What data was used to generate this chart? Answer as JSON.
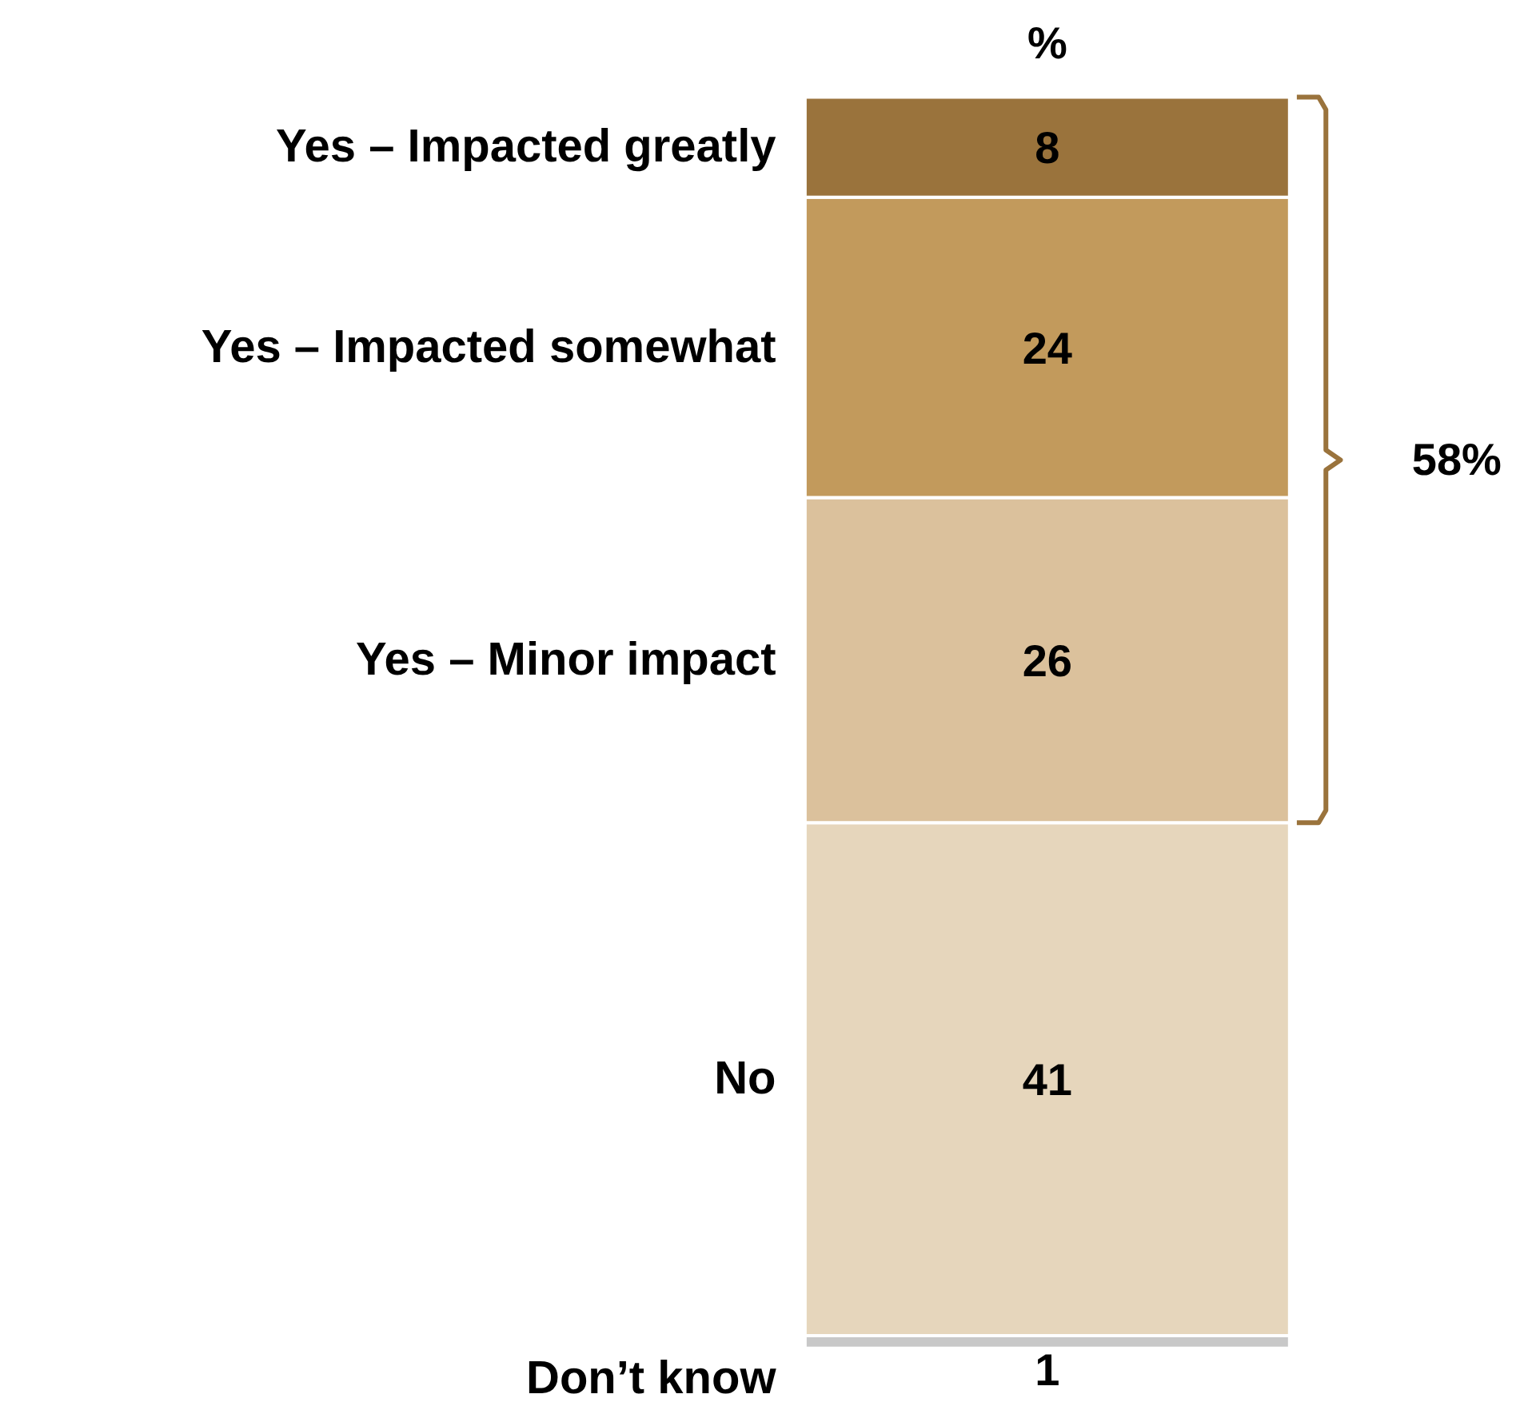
{
  "chart_data": {
    "type": "bar",
    "stacked": true,
    "title": "%",
    "categories": [
      null
    ],
    "data_labels": true,
    "series": [
      {
        "name": "Don’t know",
        "color": "#c8c8c8",
        "values": [
          1
        ]
      },
      {
        "name": "No",
        "color": "#e6d6bc",
        "values": [
          41
        ]
      },
      {
        "name": "Yes – Minor impact",
        "color": "#dbc19c",
        "values": [
          26
        ]
      },
      {
        "name": "Yes – Impacted somewhat",
        "color": "#c29a5c",
        "values": [
          24
        ]
      },
      {
        "name": "Yes – Impacted greatly",
        "color": "#9a733c",
        "values": [
          8
        ]
      }
    ],
    "annotations": [
      "58%"
    ]
  }
}
